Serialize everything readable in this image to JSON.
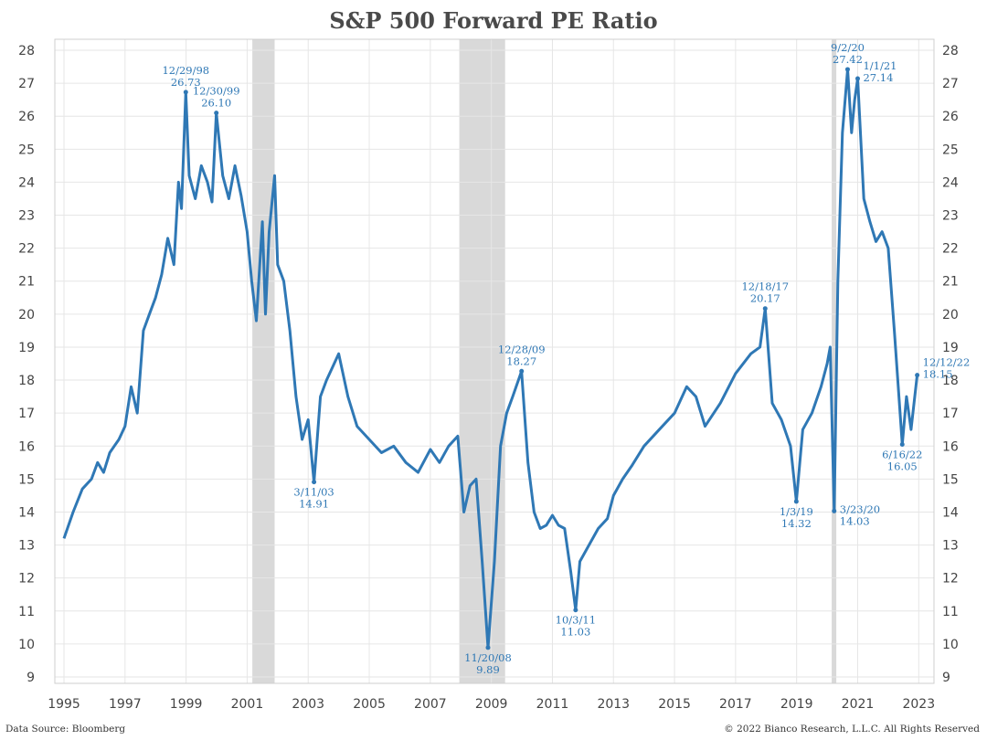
{
  "title": "S&P 500 Forward PE Ratio",
  "footer": {
    "source": "Data Source: Bloomberg",
    "copyright": "© 2022 Bianco Research, L.L.C. All Rights Reserved"
  },
  "colors": {
    "line": "#2f78b5",
    "recession": "#d9d9d9",
    "grid": "#e6e6e6",
    "annotation": "#2f78b5"
  },
  "chart_data": {
    "type": "line",
    "title": "S&P 500 Forward PE Ratio",
    "xlabel": "",
    "ylabel": "",
    "xlim": [
      1994.7,
      2023.5
    ],
    "ylim": [
      9,
      28
    ],
    "y_ticks": [
      9,
      10,
      11,
      12,
      13,
      14,
      15,
      16,
      17,
      18,
      19,
      20,
      21,
      22,
      23,
      24,
      25,
      26,
      27,
      28
    ],
    "x_ticks": [
      1995,
      1997,
      1999,
      2001,
      2003,
      2005,
      2007,
      2009,
      2011,
      2013,
      2015,
      2017,
      2019,
      2021,
      2023
    ],
    "y_axis_both_sides": true,
    "grid": true,
    "recessions": [
      [
        2001.17,
        2001.9
      ],
      [
        2007.95,
        2009.45
      ],
      [
        2020.15,
        2020.3
      ]
    ],
    "series": [
      {
        "values_x": [
          1995.0,
          1995.3,
          1995.6,
          1995.9,
          1996.1,
          1996.3,
          1996.5,
          1996.8,
          1997.0,
          1997.2,
          1997.4,
          1997.6,
          1997.8,
          1998.0,
          1998.2,
          1998.4,
          1998.6,
          1998.75,
          1998.85,
          1998.99,
          1999.1,
          1999.3,
          1999.5,
          1999.7,
          1999.85,
          1999.99,
          2000.2,
          2000.4,
          2000.6,
          2000.8,
          2001.0,
          2001.15,
          2001.3,
          2001.5,
          2001.6,
          2001.72,
          2001.9,
          2002.0,
          2002.2,
          2002.4,
          2002.6,
          2002.8,
          2003.0,
          2003.19,
          2003.4,
          2003.6,
          2003.8,
          2004.0,
          2004.3,
          2004.6,
          2005.0,
          2005.4,
          2005.8,
          2006.2,
          2006.6,
          2007.0,
          2007.3,
          2007.6,
          2007.9,
          2008.1,
          2008.3,
          2008.5,
          2008.7,
          2008.89,
          2009.1,
          2009.3,
          2009.5,
          2009.7,
          2009.99,
          2010.2,
          2010.4,
          2010.6,
          2010.8,
          2011.0,
          2011.2,
          2011.4,
          2011.6,
          2011.76,
          2011.9,
          2012.2,
          2012.5,
          2012.8,
          2013.0,
          2013.3,
          2013.6,
          2014.0,
          2014.5,
          2015.0,
          2015.4,
          2015.7,
          2016.0,
          2016.5,
          2017.0,
          2017.5,
          2017.8,
          2017.97,
          2018.2,
          2018.5,
          2018.8,
          2018.99,
          2019.2,
          2019.5,
          2019.8,
          2020.0,
          2020.1,
          2020.23,
          2020.35,
          2020.5,
          2020.67,
          2020.8,
          2020.9,
          2021.0,
          2021.2,
          2021.4,
          2021.6,
          2021.8,
          2022.0,
          2022.2,
          2022.46,
          2022.6,
          2022.75,
          2022.95
        ],
        "values_y": [
          13.2,
          14.0,
          14.7,
          15.0,
          15.5,
          15.2,
          15.8,
          16.2,
          16.6,
          17.8,
          17.0,
          19.5,
          20.0,
          20.5,
          21.2,
          22.3,
          21.5,
          24.0,
          23.2,
          26.73,
          24.2,
          23.5,
          24.5,
          24.0,
          23.4,
          26.1,
          24.2,
          23.5,
          24.5,
          23.6,
          22.5,
          21.0,
          19.8,
          22.8,
          20.0,
          22.5,
          24.2,
          21.5,
          21.0,
          19.5,
          17.5,
          16.2,
          16.8,
          14.91,
          17.5,
          18.0,
          18.4,
          18.8,
          17.5,
          16.6,
          16.2,
          15.8,
          16.0,
          15.5,
          15.2,
          15.9,
          15.5,
          16.0,
          16.3,
          14.0,
          14.8,
          15.0,
          12.5,
          9.89,
          12.5,
          16.0,
          17.0,
          17.5,
          18.27,
          15.5,
          14.0,
          13.5,
          13.6,
          13.9,
          13.6,
          13.5,
          12.2,
          11.03,
          12.5,
          13.0,
          13.5,
          13.8,
          14.5,
          15.0,
          15.4,
          16.0,
          16.5,
          17.0,
          17.8,
          17.5,
          16.6,
          17.3,
          18.2,
          18.8,
          19.0,
          20.17,
          17.3,
          16.8,
          16.0,
          14.32,
          16.5,
          17.0,
          17.8,
          18.5,
          19.0,
          14.03,
          21.0,
          25.5,
          27.42,
          25.5,
          26.5,
          27.14,
          23.5,
          22.8,
          22.2,
          22.5,
          22.0,
          19.5,
          16.05,
          17.5,
          16.5,
          18.15
        ]
      }
    ],
    "annotations": [
      {
        "date": "12/29/98",
        "value": "26.73",
        "x": 1998.99,
        "y": 26.73,
        "pos": "above"
      },
      {
        "date": "12/30/99",
        "value": "26.10",
        "x": 1999.99,
        "y": 26.1,
        "pos": "above"
      },
      {
        "date": "3/11/03",
        "value": "14.91",
        "x": 2003.19,
        "y": 14.91,
        "pos": "below"
      },
      {
        "date": "11/20/08",
        "value": "9.89",
        "x": 2008.89,
        "y": 9.89,
        "pos": "below"
      },
      {
        "date": "12/28/09",
        "value": "18.27",
        "x": 2009.99,
        "y": 18.27,
        "pos": "above"
      },
      {
        "date": "10/3/11",
        "value": "11.03",
        "x": 2011.76,
        "y": 11.03,
        "pos": "below"
      },
      {
        "date": "12/18/17",
        "value": "20.17",
        "x": 2017.97,
        "y": 20.17,
        "pos": "above"
      },
      {
        "date": "1/3/19",
        "value": "14.32",
        "x": 2018.99,
        "y": 14.32,
        "pos": "below"
      },
      {
        "date": "3/23/20",
        "value": "14.03",
        "x": 2020.23,
        "y": 14.03,
        "pos": "right"
      },
      {
        "date": "9/2/20",
        "value": "27.42",
        "x": 2020.67,
        "y": 27.42,
        "pos": "above"
      },
      {
        "date": "1/1/21",
        "value": "27.14",
        "x": 2021.0,
        "y": 27.14,
        "pos": "aboveright"
      },
      {
        "date": "6/16/22",
        "value": "16.05",
        "x": 2022.46,
        "y": 16.05,
        "pos": "below"
      },
      {
        "date": "12/12/22",
        "value": "18.15",
        "x": 2022.95,
        "y": 18.15,
        "pos": "aboveright"
      }
    ]
  }
}
